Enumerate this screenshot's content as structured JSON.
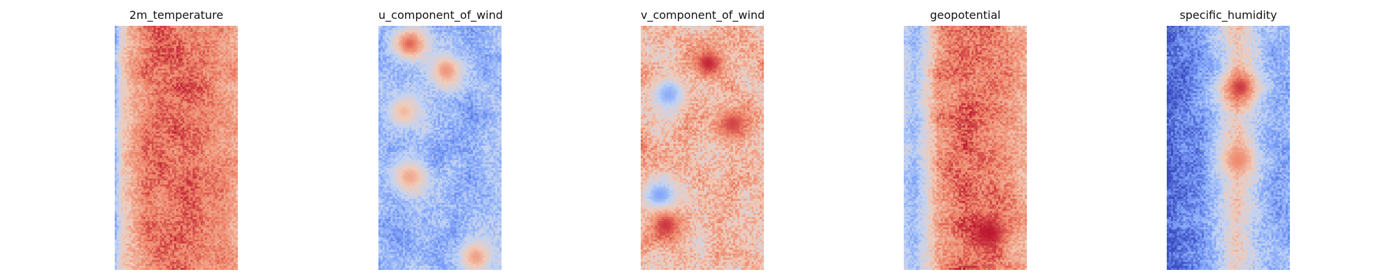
{
  "figure": {
    "background": "#ffffff",
    "colormap": "coolwarm",
    "colormap_stops": [
      "#3b4cc0",
      "#7b9ff9",
      "#c0d4f5",
      "#f2cbb7",
      "#ee8468",
      "#b40426"
    ],
    "axes_visible": false
  },
  "chart_data": [
    {
      "type": "heatmap",
      "title": "2m_temperature",
      "grid": false,
      "cmap": "coolwarm",
      "columns": 60,
      "rows": 120,
      "column_profile": [
        0.3,
        0.55,
        0.65,
        0.8,
        0.82,
        0.84,
        0.82,
        0.76,
        0.72
      ],
      "profile_positions": [
        0.0,
        0.05,
        0.12,
        0.25,
        0.4,
        0.55,
        0.7,
        0.85,
        1.0
      ],
      "noise": 0.08,
      "hot_spots": []
    },
    {
      "type": "heatmap",
      "title": "u_component_of_wind",
      "grid": false,
      "cmap": "coolwarm",
      "columns": 60,
      "rows": 120,
      "column_profile": [
        0.3,
        0.25,
        0.32,
        0.28,
        0.3,
        0.27,
        0.3,
        0.33
      ],
      "profile_positions": [
        0.0,
        0.15,
        0.3,
        0.45,
        0.6,
        0.75,
        0.9,
        1.0
      ],
      "noise": 0.1,
      "hot_spots": [
        {
          "col": 0.25,
          "row": 0.07,
          "value": 0.85
        },
        {
          "col": 0.55,
          "row": 0.18,
          "value": 0.75
        },
        {
          "col": 0.2,
          "row": 0.35,
          "value": 0.65
        },
        {
          "col": 0.25,
          "row": 0.62,
          "value": 0.7
        },
        {
          "col": 0.8,
          "row": 0.95,
          "value": 0.72
        }
      ]
    },
    {
      "type": "heatmap",
      "title": "v_component_of_wind",
      "grid": false,
      "cmap": "coolwarm",
      "columns": 60,
      "rows": 120,
      "column_profile": [
        0.66,
        0.62,
        0.64,
        0.62,
        0.65,
        0.63,
        0.64
      ],
      "profile_positions": [
        0.0,
        0.2,
        0.35,
        0.5,
        0.65,
        0.8,
        1.0
      ],
      "noise": 0.12,
      "hot_spots": [
        {
          "col": 0.55,
          "row": 0.15,
          "value": 0.95
        },
        {
          "col": 0.22,
          "row": 0.28,
          "value": 0.25
        },
        {
          "col": 0.75,
          "row": 0.4,
          "value": 0.9
        },
        {
          "col": 0.15,
          "row": 0.7,
          "value": 0.2
        },
        {
          "col": 0.2,
          "row": 0.82,
          "value": 0.92
        }
      ]
    },
    {
      "type": "heatmap",
      "title": "geopotential",
      "grid": false,
      "cmap": "coolwarm",
      "columns": 60,
      "rows": 120,
      "column_profile": [
        0.4,
        0.3,
        0.5,
        0.75,
        0.82,
        0.84,
        0.8,
        0.72,
        0.68
      ],
      "profile_positions": [
        0.0,
        0.08,
        0.18,
        0.28,
        0.45,
        0.6,
        0.75,
        0.9,
        1.0
      ],
      "noise": 0.09,
      "hot_spots": [
        {
          "col": 0.7,
          "row": 0.85,
          "value": 0.97
        }
      ]
    },
    {
      "type": "heatmap",
      "title": "specific_humidity",
      "grid": false,
      "cmap": "coolwarm",
      "columns": 60,
      "rows": 120,
      "column_profile": [
        0.06,
        0.12,
        0.22,
        0.4,
        0.6,
        0.45,
        0.32,
        0.26,
        0.28
      ],
      "profile_positions": [
        0.0,
        0.15,
        0.3,
        0.45,
        0.57,
        0.68,
        0.78,
        0.9,
        1.0
      ],
      "noise": 0.1,
      "hot_spots": [
        {
          "col": 0.6,
          "row": 0.25,
          "value": 0.92
        },
        {
          "col": 0.58,
          "row": 0.55,
          "value": 0.78
        }
      ]
    }
  ]
}
